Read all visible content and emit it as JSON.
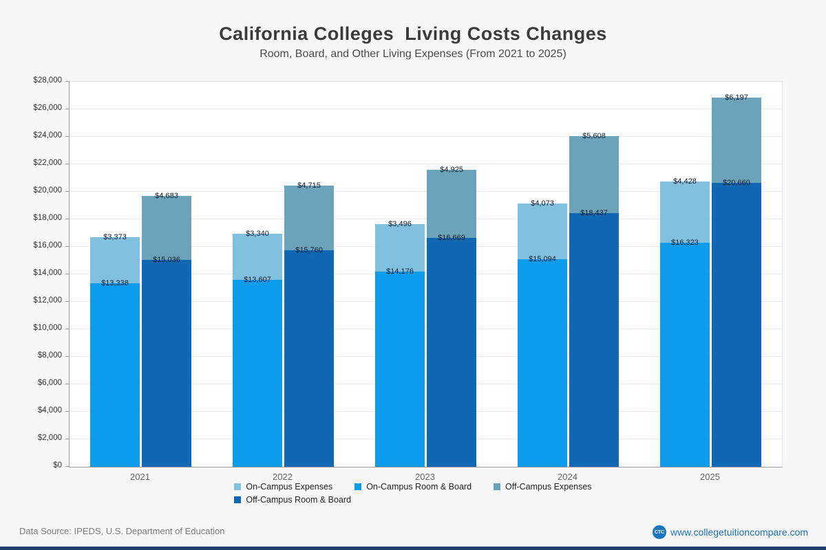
{
  "header": {
    "title": "California Colleges  Living Costs Changes",
    "subtitle": "Room, Board, and Other Living Expenses (From 2021 to 2025)"
  },
  "chart_data": {
    "type": "bar",
    "stacked": true,
    "title": "California Colleges  Living Costs Changes",
    "subtitle": "Room, Board, and Other Living Expenses (From 2021 to 2025)",
    "categories": [
      "2021",
      "2022",
      "2023",
      "2024",
      "2025"
    ],
    "ylim": [
      0,
      28000
    ],
    "ytick_step": 2000,
    "value_prefix": "$",
    "grid": true,
    "legend_position": "bottom",
    "series": [
      {
        "name": "On-Campus Room & Board",
        "bar": "on-campus",
        "color": "#0d9ceb",
        "values": [
          13338,
          13607,
          14176,
          15094,
          16323
        ]
      },
      {
        "name": "On-Campus Expenses",
        "bar": "on-campus",
        "color": "#82c0e0",
        "values": [
          3373,
          3340,
          3496,
          4073,
          4428
        ]
      },
      {
        "name": "Off-Campus Room & Board",
        "bar": "off-campus",
        "color": "#1068b2",
        "values": [
          15036,
          15760,
          16669,
          18437,
          20660
        ]
      },
      {
        "name": "Off-Campus Expenses",
        "bar": "off-campus",
        "color": "#6ba3ba",
        "values": [
          4683,
          4715,
          4925,
          5608,
          6197
        ]
      }
    ]
  },
  "legend": {
    "rows": [
      [
        {
          "label": "On-Campus Expenses",
          "color": "#82c0e0"
        },
        {
          "label": "On-Campus Room & Board",
          "color": "#0d9ceb"
        },
        {
          "label": "Off-Campus Expenses",
          "color": "#6ba3ba"
        }
      ],
      [
        {
          "label": "Off-Campus Room & Board",
          "color": "#1068b2"
        }
      ]
    ]
  },
  "footer": {
    "source": "Data Source: IPEDS, U.S. Department of Education",
    "logo": "CTC",
    "site": "www.collegetuitioncompare.com"
  },
  "colors": {
    "accent_blue": "#1b75bc",
    "bottom_bar": "#1e3f66",
    "page_bg": "#f7f7f7",
    "plot_bg": "#ffffff"
  }
}
